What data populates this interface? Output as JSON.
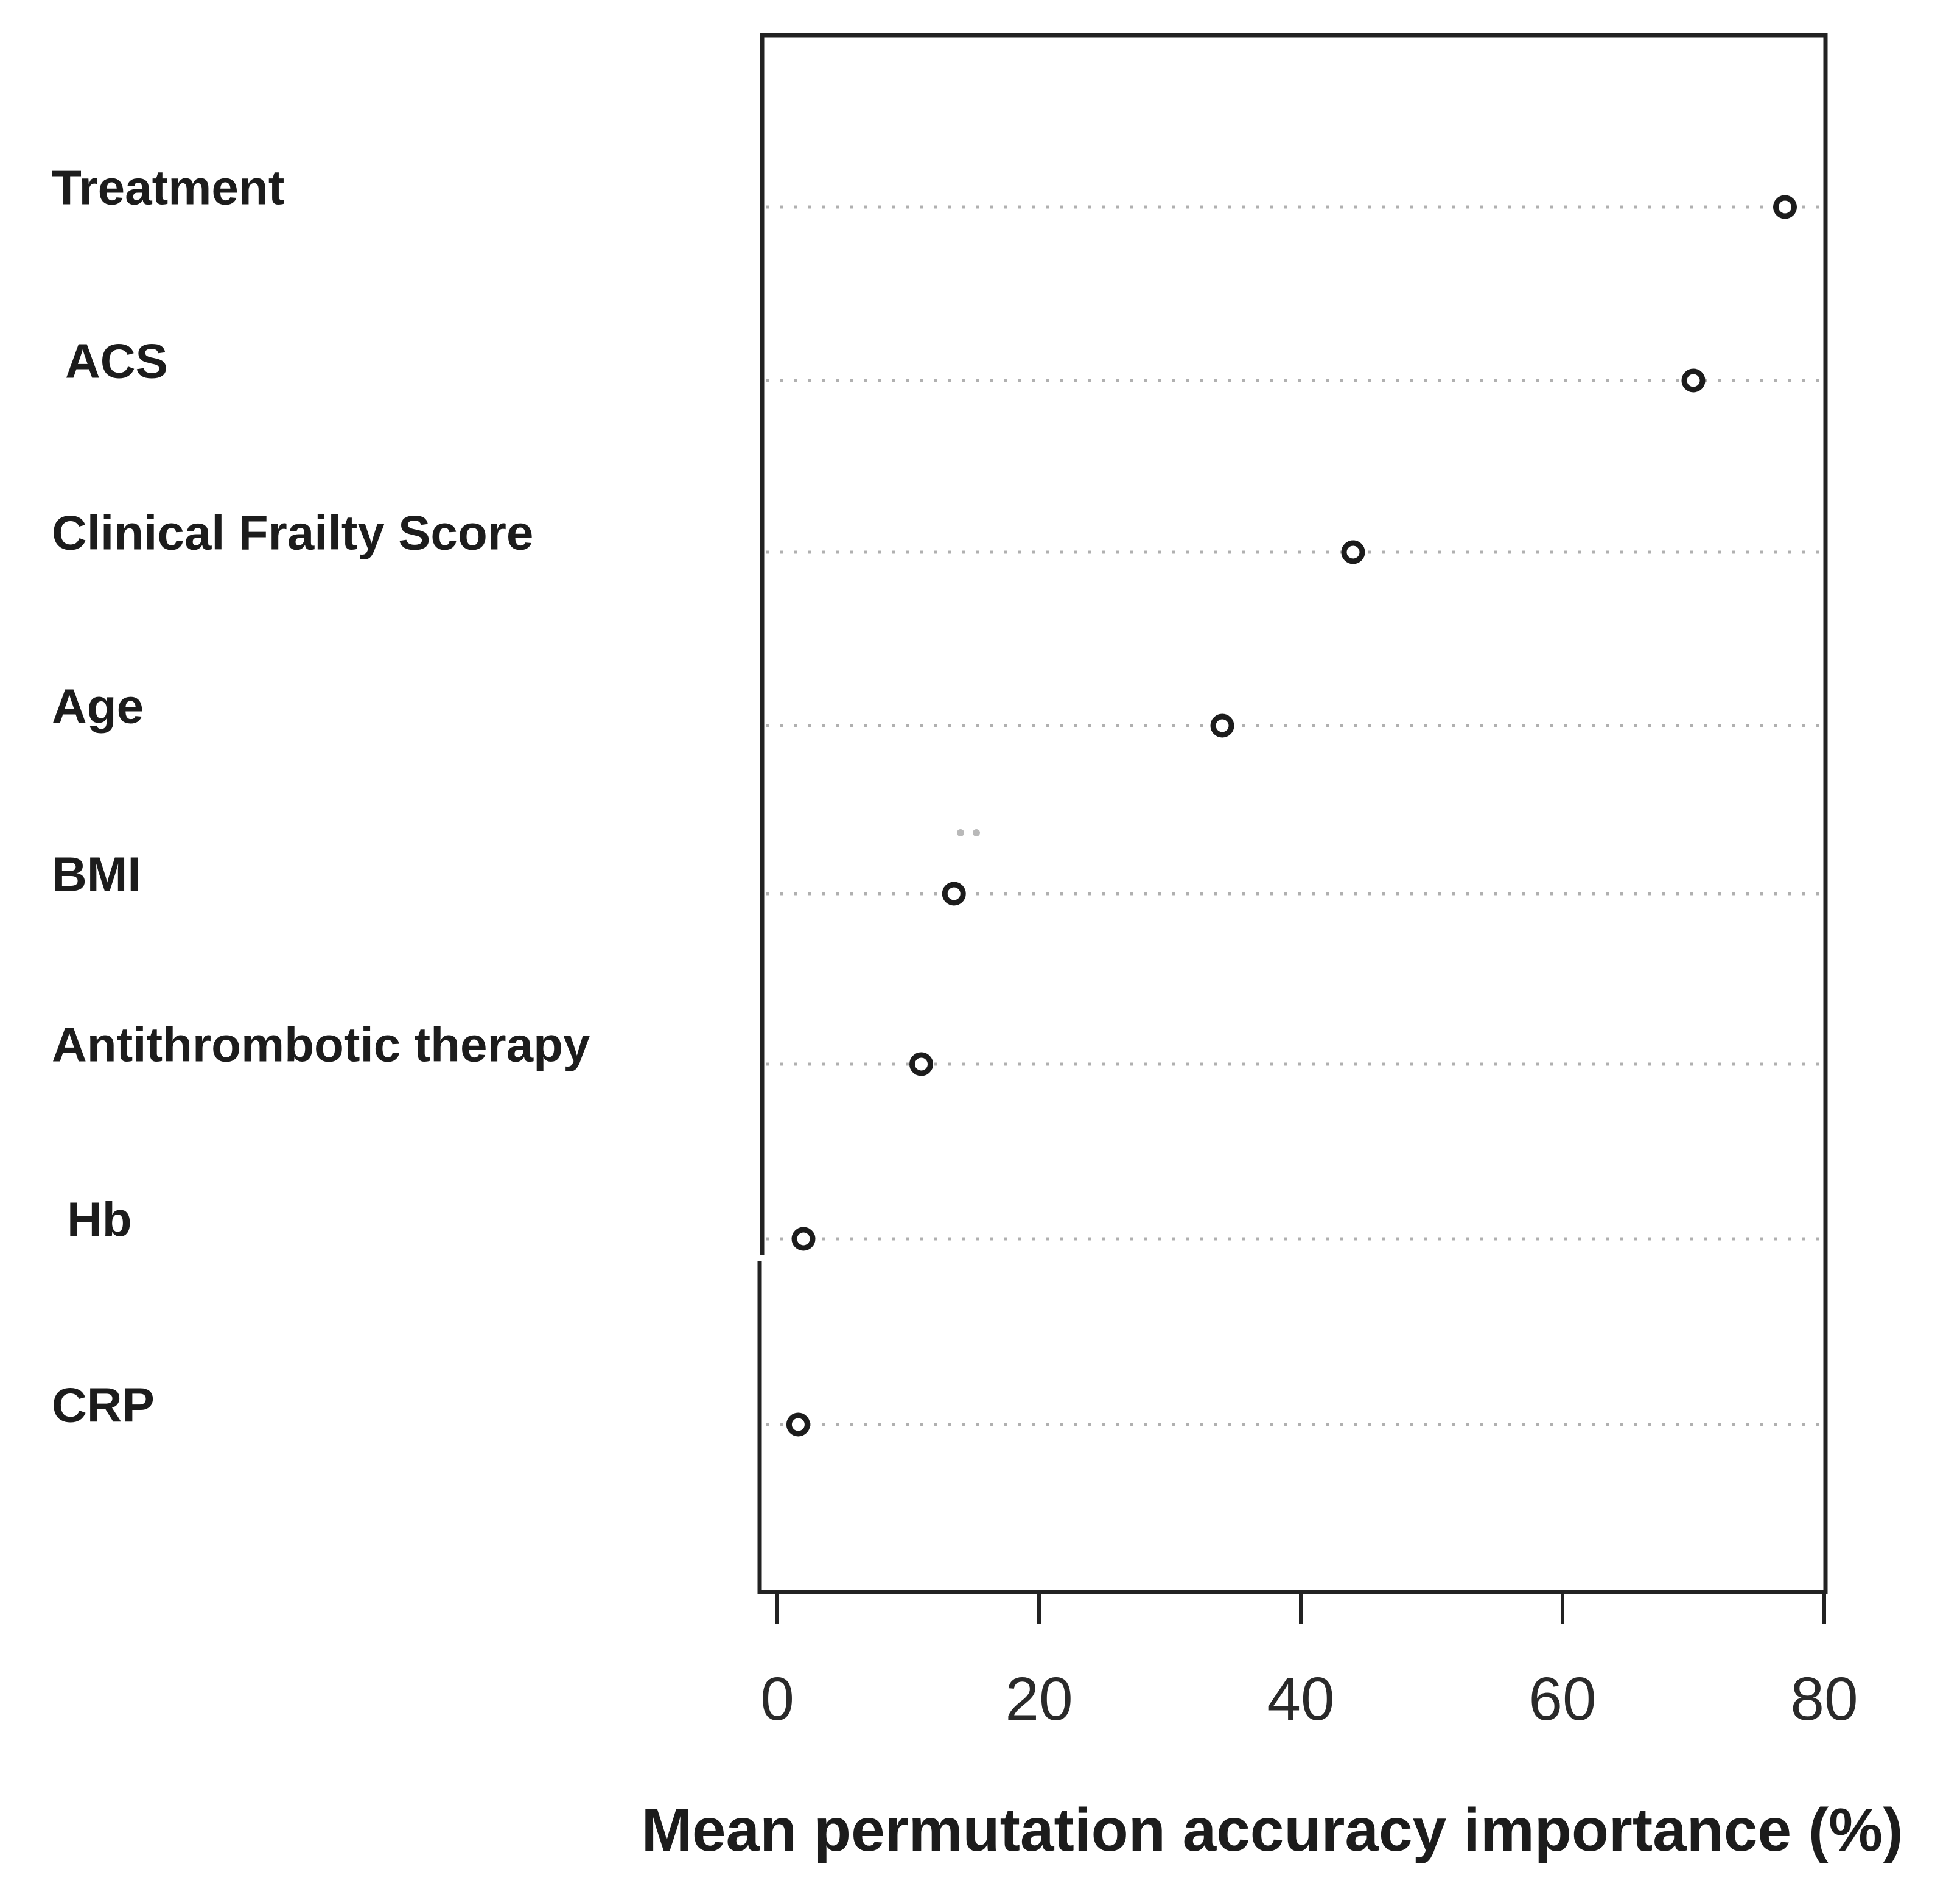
{
  "figure": {
    "background_color": "#ffffff",
    "ink_color": "#1c1c1c",
    "gridline_color": "#b0b0b0"
  },
  "chart_data": {
    "type": "scatter",
    "subtype": "dot-plot-variable-importance",
    "title": "",
    "xlabel": "Mean permutation accuracy importance (%)",
    "ylabel": "",
    "categories": [
      "Treatment",
      "ACS",
      "Clinical Frailty Score",
      "Age",
      "BMI",
      "Antithrombotic therapy",
      "Hb",
      "CRP"
    ],
    "values": [
      77,
      70,
      44,
      34,
      13.5,
      11,
      2,
      1.6
    ],
    "xlim": [
      0,
      80
    ],
    "xticks": [
      0,
      20,
      40,
      60,
      80
    ],
    "grid": "horizontal-dotted",
    "marker": "open-circle",
    "legend": null
  }
}
